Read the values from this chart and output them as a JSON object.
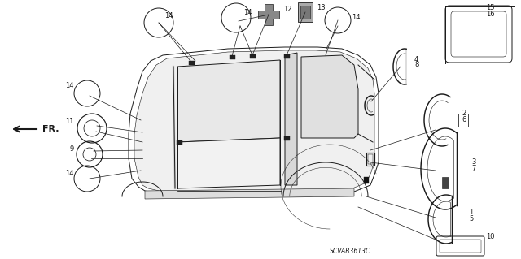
{
  "bg_color": "#ffffff",
  "line_color": "#1a1a1a",
  "diagram_code": "SCVAB3613C",
  "label_fontsize": 6.0,
  "code_fontsize": 5.5,
  "fig_w": 6.4,
  "fig_h": 3.19,
  "dpi": 100
}
